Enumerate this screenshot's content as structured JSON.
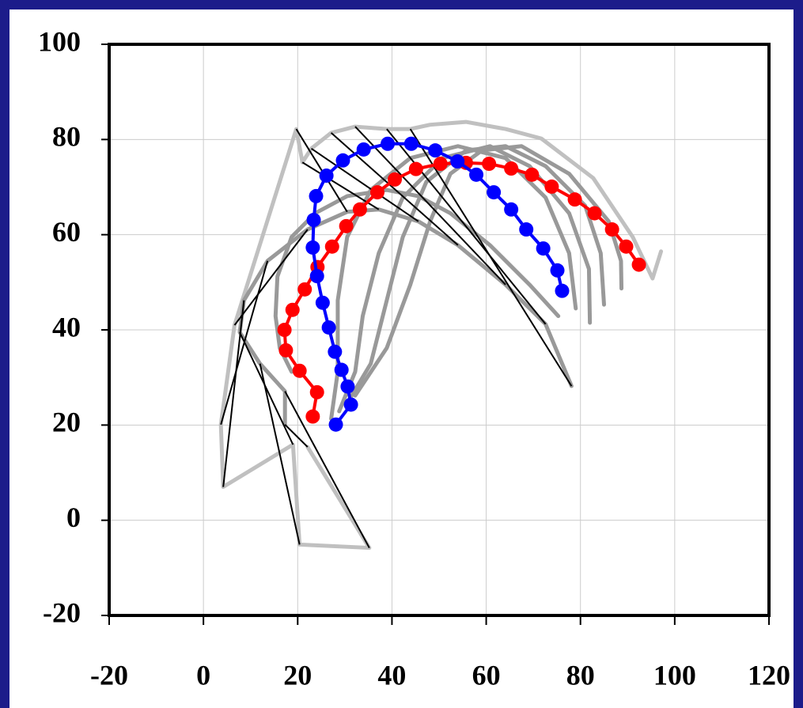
{
  "chart_data": {
    "type": "line",
    "xlim": [
      -20,
      120
    ],
    "xticks": [
      -20,
      0,
      20,
      40,
      60,
      80,
      100,
      120
    ],
    "ylim": [
      -20,
      100
    ],
    "yticks": [
      -20,
      0,
      20,
      40,
      60,
      80,
      100
    ],
    "grid": true,
    "pair_lines": {
      "from": 1,
      "to": 0,
      "color": "#000000"
    },
    "series": [
      {
        "color": "#c0c0c0",
        "marker": false,
        "x": [
          22.1,
          35.2,
          20.4,
          19.0,
          4.2,
          3.7,
          6.6,
          19.7,
          21.0,
          22.9,
          27.1,
          32.2,
          38.9,
          43.9,
          48.1,
          55.7,
          64.1,
          71.7,
          82.7,
          91.1,
          95.3,
          97.1
        ],
        "values": [
          15.4,
          -5.8,
          -5.1,
          15.9,
          7.0,
          20.1,
          41.0,
          82.2,
          75.2,
          78.1,
          81.4,
          82.7,
          82.2,
          82.2,
          83.1,
          83.7,
          82.2,
          80.2,
          71.9,
          59.5,
          50.8,
          56.5
        ]
      },
      {
        "color": "#999999",
        "marker": false,
        "x": [
          17.3,
          17.3,
          12.0,
          7.7,
          8.6,
          13.6,
          22.1,
          30.5,
          37.2,
          45.6,
          54.0,
          64.1,
          72.6,
          78.1
        ],
        "values": [
          20.1,
          27.1,
          32.9,
          39.5,
          46.2,
          54.5,
          61.1,
          64.8,
          65.3,
          62.8,
          57.8,
          49.5,
          41.2,
          28.2
        ]
      },
      {
        "color": "#999999",
        "marker": false,
        "x": [
          18.7,
          16.2,
          15.3,
          15.7,
          18.7,
          23.7,
          30.5,
          38.9,
          45.6,
          52.4,
          60.8,
          69.2,
          75.3
        ],
        "values": [
          31.2,
          36.2,
          42.9,
          51.2,
          59.5,
          64.5,
          68.1,
          69.4,
          68.1,
          64.5,
          57.8,
          49.5,
          42.9
        ]
      },
      {
        "color": "#999999",
        "marker": false,
        "x": [
          27.1,
          28.5,
          28.5,
          30.5,
          35.5,
          43.9,
          54.0,
          64.1,
          72.6,
          77.6,
          79.0
        ],
        "values": [
          21.3,
          31.2,
          46.2,
          59.5,
          69.4,
          76.1,
          78.6,
          76.1,
          67.8,
          56.1,
          44.5
        ]
      },
      {
        "color": "#999999",
        "marker": false,
        "x": [
          28.8,
          32.2,
          33.8,
          37.2,
          42.3,
          50.7,
          60.8,
          69.2,
          77.6,
          81.8,
          82.0
        ],
        "values": [
          22.9,
          31.2,
          42.9,
          56.1,
          67.8,
          76.1,
          78.6,
          74.4,
          64.5,
          52.8,
          41.5
        ]
      },
      {
        "color": "#999999",
        "marker": false,
        "x": [
          30.5,
          35.5,
          38.9,
          42.3,
          47.3,
          55.7,
          64.1,
          72.6,
          81.0,
          84.3,
          85.0
        ],
        "values": [
          24.6,
          32.9,
          46.2,
          59.5,
          71.1,
          77.7,
          78.6,
          74.4,
          66.1,
          56.1,
          45.3
        ]
      },
      {
        "color": "#999999",
        "marker": false,
        "x": [
          32.2,
          38.9,
          43.9,
          48.1,
          52.4,
          59.1,
          67.5,
          77.6,
          86.0,
          88.6,
          88.7
        ],
        "values": [
          26.2,
          36.2,
          49.5,
          62.8,
          72.8,
          77.7,
          78.6,
          72.8,
          62.8,
          54.5,
          48.7
        ]
      },
      {
        "color": "#ff0000",
        "marker": true,
        "x": [
          23.2,
          24.1,
          20.4,
          17.5,
          17.2,
          18.9,
          21.5,
          24.2,
          27.3,
          30.3,
          33.2,
          36.9,
          40.6,
          45.1,
          50.3,
          55.7,
          60.6,
          65.3,
          69.7,
          73.9,
          78.8,
          83.0,
          86.7,
          89.7,
          92.4
        ],
        "values": [
          21.8,
          26.9,
          31.4,
          35.7,
          40.0,
          44.2,
          48.5,
          53.2,
          57.5,
          61.8,
          65.3,
          68.9,
          71.6,
          73.8,
          74.9,
          75.1,
          74.9,
          73.9,
          72.6,
          70.1,
          67.4,
          64.5,
          61.1,
          57.5,
          53.7
        ]
      },
      {
        "color": "#0000ff",
        "marker": true,
        "x": [
          28.1,
          31.3,
          30.6,
          29.3,
          27.9,
          26.6,
          25.3,
          24.1,
          23.2,
          23.4,
          23.9,
          26.1,
          29.6,
          34.0,
          39.1,
          44.1,
          49.2,
          53.9,
          57.9,
          61.6,
          65.3,
          68.5,
          72.1,
          75.1,
          76.1
        ],
        "values": [
          20.1,
          24.3,
          28.1,
          31.6,
          35.4,
          40.5,
          45.7,
          51.3,
          57.3,
          63.1,
          68.1,
          72.4,
          75.6,
          77.9,
          79.1,
          79.1,
          77.7,
          75.4,
          72.6,
          68.9,
          65.3,
          61.1,
          57.1,
          52.5,
          48.2
        ]
      }
    ]
  }
}
